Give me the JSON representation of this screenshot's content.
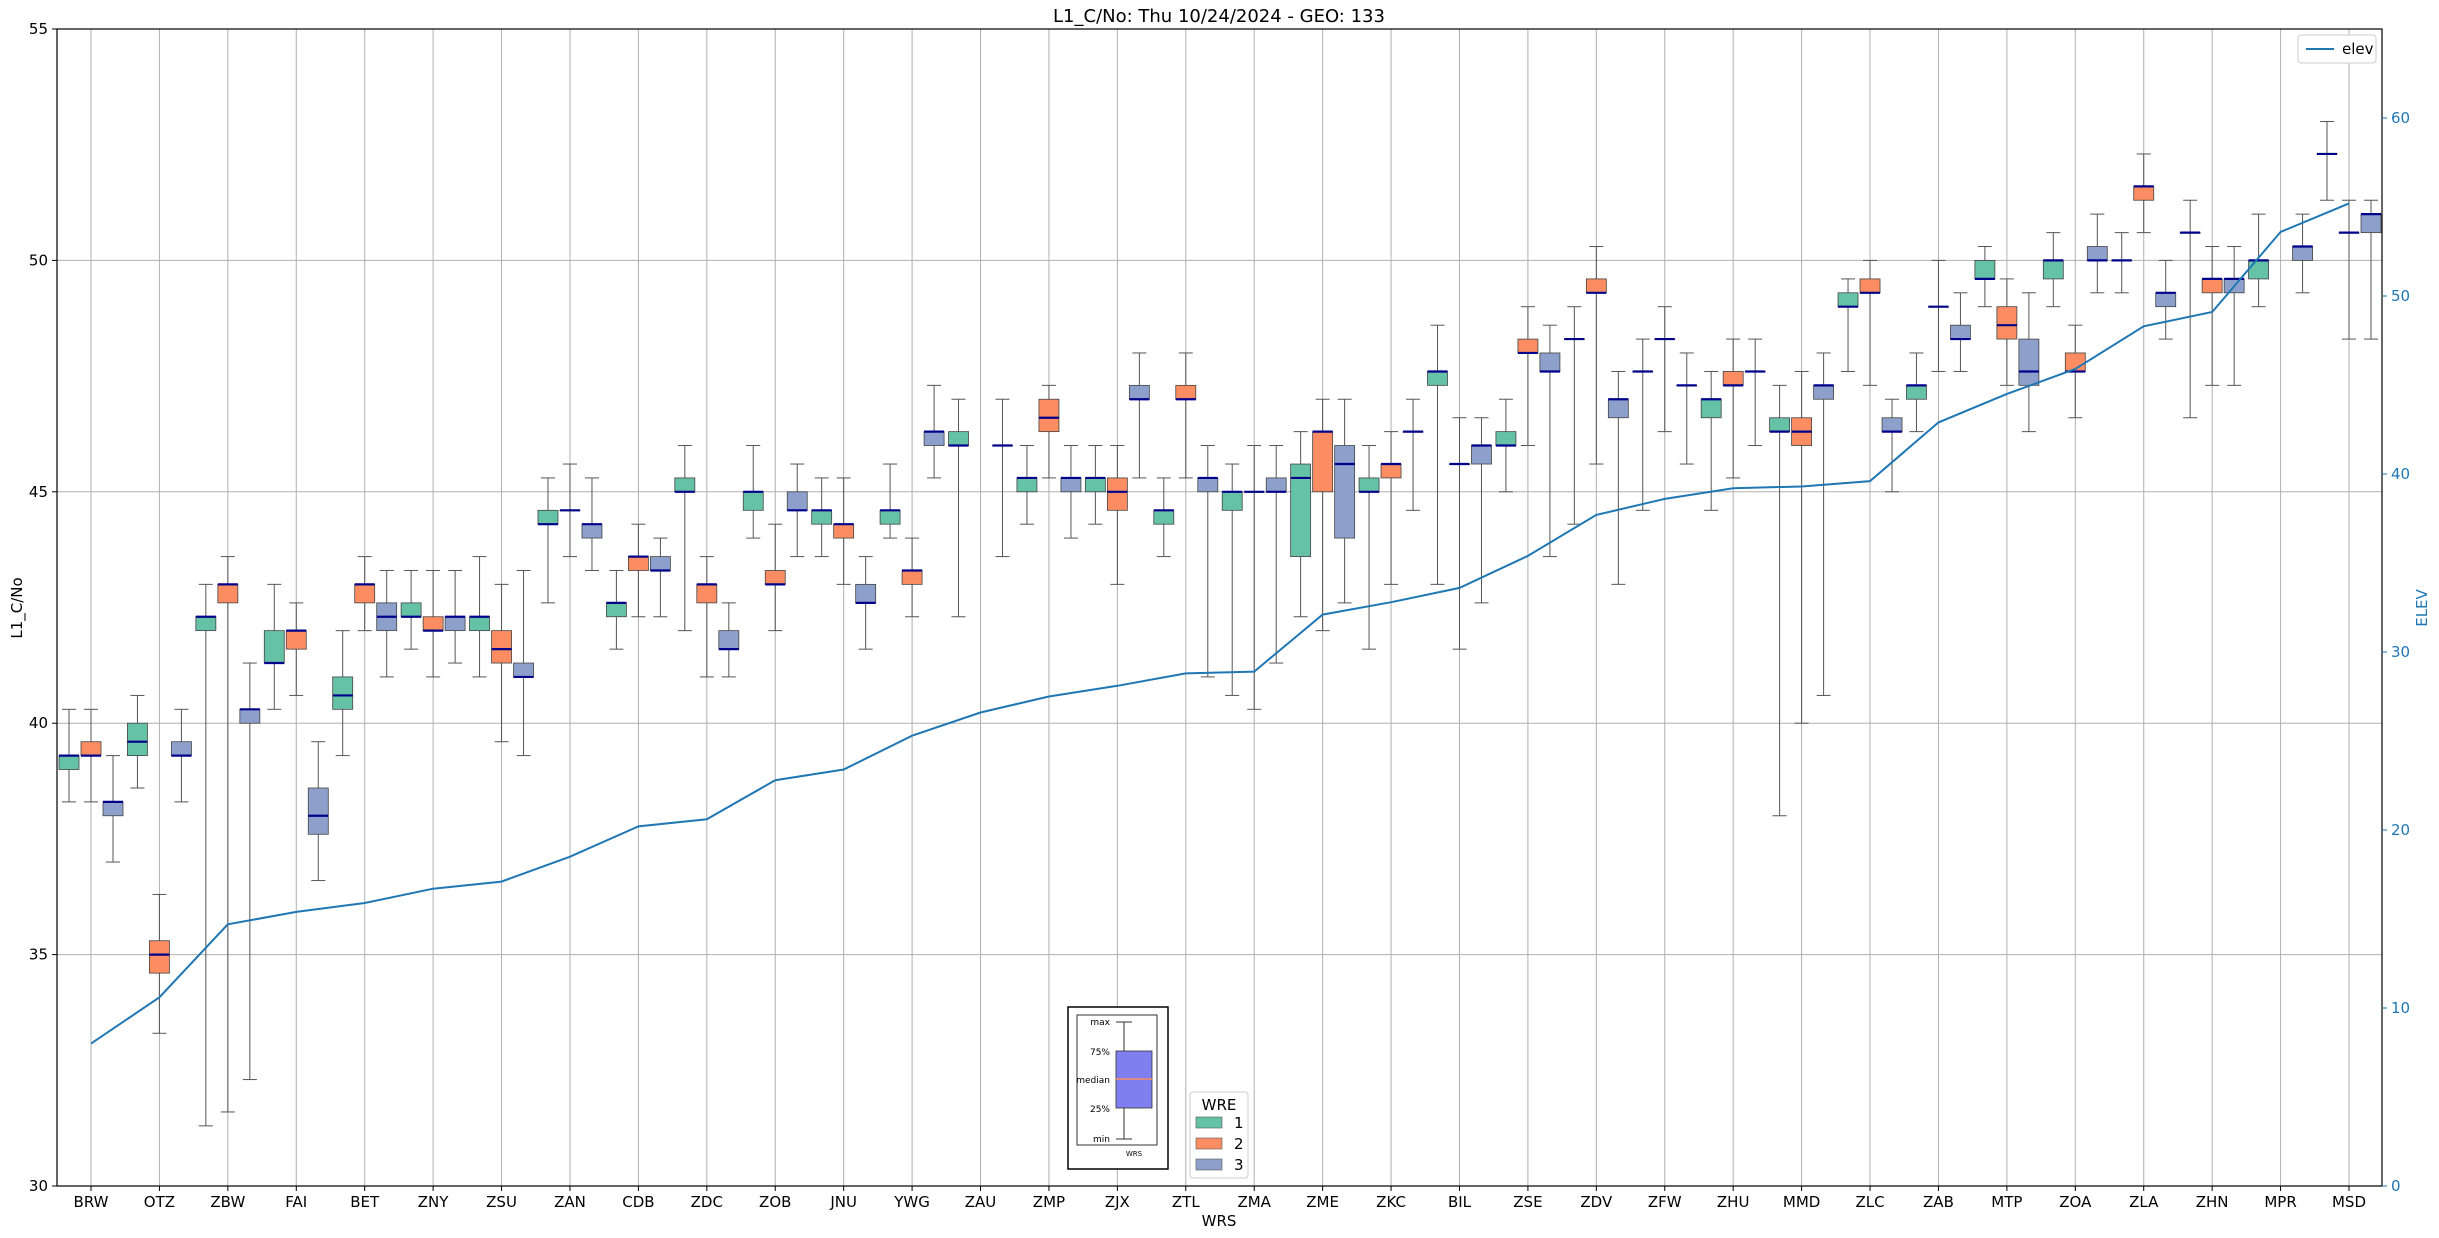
{
  "chart_data": {
    "type": "box",
    "title": "L1_C/No: Thu 10/24/2024 - GEO: 133",
    "xlabel": "WRS",
    "ylabel": "L1_C/No",
    "ylabel_right": "ELEV",
    "ylim": [
      30,
      55
    ],
    "ylim_right": [
      0,
      65
    ],
    "yticks": [
      "30",
      "35",
      "40",
      "45",
      "50",
      "55"
    ],
    "yticks_right": [
      "0",
      "10",
      "20",
      "30",
      "40",
      "50",
      "60"
    ],
    "grid": true,
    "legend_line": {
      "label": "elev",
      "placement": "top-right"
    },
    "legend_wre": {
      "title": "WRE",
      "entries": [
        "1",
        "2",
        "3"
      ],
      "placement": "bottom-center"
    },
    "box_key": {
      "labels": [
        "max",
        "75%",
        "median",
        "25%",
        "min"
      ],
      "xlabel": "WRS"
    },
    "colors": {
      "wre1": "#66c2a5",
      "wre2": "#fc8d62",
      "wre3": "#8da0cb",
      "median": "#00008b",
      "elev": "#1f77b4",
      "whisker": "#555555",
      "right_axis": "#1f77b4"
    },
    "categories": [
      "BRW",
      "OTZ",
      "ZBW",
      "FAI",
      "BET",
      "ZNY",
      "ZSU",
      "ZAN",
      "CDB",
      "ZDC",
      "ZOB",
      "JNU",
      "YWG",
      "ZAU",
      "ZMP",
      "ZJX",
      "ZTL",
      "ZMA",
      "ZME",
      "ZKC",
      "BIL",
      "ZSE",
      "ZDV",
      "ZFW",
      "ZHU",
      "MMD",
      "ZLC",
      "ZAB",
      "MTP",
      "ZOA",
      "ZLA",
      "ZHN",
      "MPR",
      "MSD"
    ],
    "elev": [
      8,
      10.6,
      14.7,
      15.4,
      15.9,
      16.7,
      17.1,
      18.5,
      20.2,
      20.6,
      22.8,
      23.4,
      25.3,
      26.6,
      27.5,
      28.1,
      28.8,
      28.9,
      32.1,
      32.8,
      33.6,
      35.4,
      37.7,
      38.6,
      39.2,
      39.3,
      39.6,
      42.9,
      44.5,
      45.9,
      48.3,
      49.1,
      53.6,
      55.2
    ],
    "boxes": [
      {
        "wrs": "BRW",
        "wre": 1,
        "min": 38.3,
        "q1": 39.0,
        "med": 39.3,
        "q3": 39.3,
        "max": 40.3
      },
      {
        "wrs": "BRW",
        "wre": 2,
        "min": 38.3,
        "q1": 39.3,
        "med": 39.3,
        "q3": 39.6,
        "max": 40.3
      },
      {
        "wrs": "BRW",
        "wre": 3,
        "min": 37.0,
        "q1": 38.0,
        "med": 38.3,
        "q3": 38.3,
        "max": 39.3
      },
      {
        "wrs": "OTZ",
        "wre": 1,
        "min": 38.6,
        "q1": 39.3,
        "med": 39.6,
        "q3": 40.0,
        "max": 40.6
      },
      {
        "wrs": "OTZ",
        "wre": 2,
        "min": 33.3,
        "q1": 34.6,
        "med": 35.0,
        "q3": 35.3,
        "max": 36.3
      },
      {
        "wrs": "OTZ",
        "wre": 3,
        "min": 38.3,
        "q1": 39.3,
        "med": 39.3,
        "q3": 39.6,
        "max": 40.3
      },
      {
        "wrs": "ZBW",
        "wre": 1,
        "min": 31.3,
        "q1": 42.0,
        "med": 42.3,
        "q3": 42.3,
        "max": 43.0
      },
      {
        "wrs": "ZBW",
        "wre": 2,
        "min": 31.6,
        "q1": 42.6,
        "med": 43.0,
        "q3": 43.0,
        "max": 43.6
      },
      {
        "wrs": "ZBW",
        "wre": 3,
        "min": 32.3,
        "q1": 40.0,
        "med": 40.3,
        "q3": 40.3,
        "max": 41.3
      },
      {
        "wrs": "FAI",
        "wre": 1,
        "min": 40.3,
        "q1": 41.3,
        "med": 41.3,
        "q3": 42.0,
        "max": 43.0
      },
      {
        "wrs": "FAI",
        "wre": 2,
        "min": 40.6,
        "q1": 41.6,
        "med": 42.0,
        "q3": 42.0,
        "max": 42.6
      },
      {
        "wrs": "FAI",
        "wre": 3,
        "min": 36.6,
        "q1": 37.6,
        "med": 38.0,
        "q3": 38.6,
        "max": 39.6
      },
      {
        "wrs": "BET",
        "wre": 1,
        "min": 39.3,
        "q1": 40.3,
        "med": 40.6,
        "q3": 41.0,
        "max": 42.0
      },
      {
        "wrs": "BET",
        "wre": 2,
        "min": 42.0,
        "q1": 42.6,
        "med": 43.0,
        "q3": 43.0,
        "max": 43.6
      },
      {
        "wrs": "BET",
        "wre": 3,
        "min": 41.0,
        "q1": 42.0,
        "med": 42.3,
        "q3": 42.6,
        "max": 43.3
      },
      {
        "wrs": "ZNY",
        "wre": 1,
        "min": 41.6,
        "q1": 42.3,
        "med": 42.3,
        "q3": 42.6,
        "max": 43.3
      },
      {
        "wrs": "ZNY",
        "wre": 2,
        "min": 41.0,
        "q1": 42.0,
        "med": 42.0,
        "q3": 42.3,
        "max": 43.3
      },
      {
        "wrs": "ZNY",
        "wre": 3,
        "min": 41.3,
        "q1": 42.0,
        "med": 42.3,
        "q3": 42.3,
        "max": 43.3
      },
      {
        "wrs": "ZSU",
        "wre": 1,
        "min": 41.0,
        "q1": 42.0,
        "med": 42.3,
        "q3": 42.3,
        "max": 43.6
      },
      {
        "wrs": "ZSU",
        "wre": 2,
        "min": 39.6,
        "q1": 41.3,
        "med": 41.6,
        "q3": 42.0,
        "max": 43.0
      },
      {
        "wrs": "ZSU",
        "wre": 3,
        "min": 39.3,
        "q1": 41.0,
        "med": 41.0,
        "q3": 41.3,
        "max": 43.3
      },
      {
        "wrs": "ZAN",
        "wre": 1,
        "min": 42.6,
        "q1": 44.3,
        "med": 44.3,
        "q3": 44.6,
        "max": 45.3
      },
      {
        "wrs": "ZAN",
        "wre": 2,
        "min": 43.6,
        "q1": 44.6,
        "med": 44.6,
        "q3": 44.6,
        "max": 45.6
      },
      {
        "wrs": "ZAN",
        "wre": 3,
        "min": 43.3,
        "q1": 44.0,
        "med": 44.3,
        "q3": 44.3,
        "max": 45.3
      },
      {
        "wrs": "CDB",
        "wre": 1,
        "min": 41.6,
        "q1": 42.3,
        "med": 42.6,
        "q3": 42.6,
        "max": 43.3
      },
      {
        "wrs": "CDB",
        "wre": 2,
        "min": 42.3,
        "q1": 43.3,
        "med": 43.6,
        "q3": 43.6,
        "max": 44.3
      },
      {
        "wrs": "CDB",
        "wre": 3,
        "min": 42.3,
        "q1": 43.3,
        "med": 43.3,
        "q3": 43.6,
        "max": 44.0
      },
      {
        "wrs": "ZDC",
        "wre": 1,
        "min": 42.0,
        "q1": 45.0,
        "med": 45.0,
        "q3": 45.3,
        "max": 46.0
      },
      {
        "wrs": "ZDC",
        "wre": 2,
        "min": 41.0,
        "q1": 42.6,
        "med": 43.0,
        "q3": 43.0,
        "max": 43.6
      },
      {
        "wrs": "ZDC",
        "wre": 3,
        "min": 41.0,
        "q1": 41.6,
        "med": 41.6,
        "q3": 42.0,
        "max": 42.6
      },
      {
        "wrs": "ZOB",
        "wre": 1,
        "min": 44.0,
        "q1": 44.6,
        "med": 45.0,
        "q3": 45.0,
        "max": 46.0
      },
      {
        "wrs": "ZOB",
        "wre": 2,
        "min": 42.0,
        "q1": 43.0,
        "med": 43.0,
        "q3": 43.3,
        "max": 44.3
      },
      {
        "wrs": "ZOB",
        "wre": 3,
        "min": 43.6,
        "q1": 44.6,
        "med": 44.6,
        "q3": 45.0,
        "max": 45.6
      },
      {
        "wrs": "JNU",
        "wre": 1,
        "min": 43.6,
        "q1": 44.3,
        "med": 44.6,
        "q3": 44.6,
        "max": 45.3
      },
      {
        "wrs": "JNU",
        "wre": 2,
        "min": 43.0,
        "q1": 44.0,
        "med": 44.3,
        "q3": 44.3,
        "max": 45.3
      },
      {
        "wrs": "JNU",
        "wre": 3,
        "min": 41.6,
        "q1": 42.6,
        "med": 42.6,
        "q3": 43.0,
        "max": 43.6
      },
      {
        "wrs": "YWG",
        "wre": 1,
        "min": 44.0,
        "q1": 44.3,
        "med": 44.6,
        "q3": 44.6,
        "max": 45.6
      },
      {
        "wrs": "YWG",
        "wre": 2,
        "min": 42.3,
        "q1": 43.0,
        "med": 43.3,
        "q3": 43.3,
        "max": 44.0
      },
      {
        "wrs": "YWG",
        "wre": 3,
        "min": 45.3,
        "q1": 46.0,
        "med": 46.3,
        "q3": 46.3,
        "max": 47.3
      },
      {
        "wrs": "ZAU",
        "wre": 1,
        "min": 42.3,
        "q1": 46.0,
        "med": 46.0,
        "q3": 46.3,
        "max": 47.0
      },
      {
        "wrs": "ZAU",
        "wre": 3,
        "min": 43.6,
        "q1": 46.0,
        "med": 46.0,
        "q3": 46.0,
        "max": 47.0
      },
      {
        "wrs": "ZMP",
        "wre": 1,
        "min": 44.3,
        "q1": 45.0,
        "med": 45.3,
        "q3": 45.3,
        "max": 46.0
      },
      {
        "wrs": "ZMP",
        "wre": 2,
        "min": 45.3,
        "q1": 46.3,
        "med": 46.6,
        "q3": 47.0,
        "max": 47.3
      },
      {
        "wrs": "ZMP",
        "wre": 3,
        "min": 44.0,
        "q1": 45.0,
        "med": 45.3,
        "q3": 45.3,
        "max": 46.0
      },
      {
        "wrs": "ZJX",
        "wre": 1,
        "min": 44.3,
        "q1": 45.0,
        "med": 45.3,
        "q3": 45.3,
        "max": 46.0
      },
      {
        "wrs": "ZJX",
        "wre": 2,
        "min": 43.0,
        "q1": 44.6,
        "med": 45.0,
        "q3": 45.3,
        "max": 46.0
      },
      {
        "wrs": "ZJX",
        "wre": 3,
        "min": 45.3,
        "q1": 47.0,
        "med": 47.0,
        "q3": 47.3,
        "max": 48.0
      },
      {
        "wrs": "ZTL",
        "wre": 1,
        "min": 43.6,
        "q1": 44.3,
        "med": 44.6,
        "q3": 44.6,
        "max": 45.3
      },
      {
        "wrs": "ZTL",
        "wre": 2,
        "min": 45.3,
        "q1": 47.0,
        "med": 47.0,
        "q3": 47.3,
        "max": 48.0
      },
      {
        "wrs": "ZTL",
        "wre": 3,
        "min": 41.0,
        "q1": 45.0,
        "med": 45.3,
        "q3": 45.3,
        "max": 46.0
      },
      {
        "wrs": "ZMA",
        "wre": 1,
        "min": 40.6,
        "q1": 44.6,
        "med": 45.0,
        "q3": 45.0,
        "max": 45.6
      },
      {
        "wrs": "ZMA",
        "wre": 2,
        "min": 40.3,
        "q1": 45.0,
        "med": 45.0,
        "q3": 45.0,
        "max": 46.0
      },
      {
        "wrs": "ZMA",
        "wre": 3,
        "min": 41.3,
        "q1": 45.0,
        "med": 45.0,
        "q3": 45.3,
        "max": 46.0
      },
      {
        "wrs": "ZME",
        "wre": 1,
        "min": 42.3,
        "q1": 43.6,
        "med": 45.3,
        "q3": 45.6,
        "max": 46.3
      },
      {
        "wrs": "ZME",
        "wre": 2,
        "min": 42.0,
        "q1": 45.0,
        "med": 46.3,
        "q3": 46.3,
        "max": 47.0
      },
      {
        "wrs": "ZME",
        "wre": 3,
        "min": 42.6,
        "q1": 44.0,
        "med": 45.6,
        "q3": 46.0,
        "max": 47.0
      },
      {
        "wrs": "ZKC",
        "wre": 1,
        "min": 41.6,
        "q1": 45.0,
        "med": 45.0,
        "q3": 45.3,
        "max": 46.0
      },
      {
        "wrs": "ZKC",
        "wre": 2,
        "min": 43.0,
        "q1": 45.3,
        "med": 45.6,
        "q3": 45.6,
        "max": 46.3
      },
      {
        "wrs": "ZKC",
        "wre": 3,
        "min": 44.6,
        "q1": 46.3,
        "med": 46.3,
        "q3": 46.3,
        "max": 47.0
      },
      {
        "wrs": "BIL",
        "wre": 1,
        "min": 43.0,
        "q1": 47.3,
        "med": 47.6,
        "q3": 47.6,
        "max": 48.6
      },
      {
        "wrs": "BIL",
        "wre": 2,
        "min": 41.6,
        "q1": 45.6,
        "med": 45.6,
        "q3": 45.6,
        "max": 46.6
      },
      {
        "wrs": "BIL",
        "wre": 3,
        "min": 42.6,
        "q1": 45.6,
        "med": 46.0,
        "q3": 46.0,
        "max": 46.6
      },
      {
        "wrs": "ZSE",
        "wre": 1,
        "min": 45.0,
        "q1": 46.0,
        "med": 46.0,
        "q3": 46.3,
        "max": 47.0
      },
      {
        "wrs": "ZSE",
        "wre": 2,
        "min": 46.0,
        "q1": 48.0,
        "med": 48.0,
        "q3": 48.3,
        "max": 49.0
      },
      {
        "wrs": "ZSE",
        "wre": 3,
        "min": 43.6,
        "q1": 47.6,
        "med": 47.6,
        "q3": 48.0,
        "max": 48.6
      },
      {
        "wrs": "ZDV",
        "wre": 1,
        "min": 44.3,
        "q1": 48.3,
        "med": 48.3,
        "q3": 48.3,
        "max": 49.0
      },
      {
        "wrs": "ZDV",
        "wre": 2,
        "min": 45.6,
        "q1": 49.3,
        "med": 49.3,
        "q3": 49.6,
        "max": 50.3
      },
      {
        "wrs": "ZDV",
        "wre": 3,
        "min": 43.0,
        "q1": 46.6,
        "med": 47.0,
        "q3": 47.0,
        "max": 47.6
      },
      {
        "wrs": "ZFW",
        "wre": 1,
        "min": 44.6,
        "q1": 47.6,
        "med": 47.6,
        "q3": 47.6,
        "max": 48.3
      },
      {
        "wrs": "ZFW",
        "wre": 2,
        "min": 46.3,
        "q1": 48.3,
        "med": 48.3,
        "q3": 48.3,
        "max": 49.0
      },
      {
        "wrs": "ZFW",
        "wre": 3,
        "min": 45.6,
        "q1": 47.3,
        "med": 47.3,
        "q3": 47.3,
        "max": 48.0
      },
      {
        "wrs": "ZHU",
        "wre": 1,
        "min": 44.6,
        "q1": 46.6,
        "med": 47.0,
        "q3": 47.0,
        "max": 47.6
      },
      {
        "wrs": "ZHU",
        "wre": 2,
        "min": 45.3,
        "q1": 47.3,
        "med": 47.3,
        "q3": 47.6,
        "max": 48.3
      },
      {
        "wrs": "ZHU",
        "wre": 3,
        "min": 46.0,
        "q1": 47.6,
        "med": 47.6,
        "q3": 47.6,
        "max": 48.3
      },
      {
        "wrs": "MMD",
        "wre": 1,
        "min": 38.0,
        "q1": 46.3,
        "med": 46.3,
        "q3": 46.6,
        "max": 47.3
      },
      {
        "wrs": "MMD",
        "wre": 2,
        "min": 40.0,
        "q1": 46.0,
        "med": 46.3,
        "q3": 46.6,
        "max": 47.6
      },
      {
        "wrs": "MMD",
        "wre": 3,
        "min": 40.6,
        "q1": 47.0,
        "med": 47.3,
        "q3": 47.3,
        "max": 48.0
      },
      {
        "wrs": "ZLC",
        "wre": 1,
        "min": 47.6,
        "q1": 49.0,
        "med": 49.0,
        "q3": 49.3,
        "max": 49.6
      },
      {
        "wrs": "ZLC",
        "wre": 2,
        "min": 47.3,
        "q1": 49.3,
        "med": 49.3,
        "q3": 49.6,
        "max": 50.0
      },
      {
        "wrs": "ZLC",
        "wre": 3,
        "min": 45.0,
        "q1": 46.3,
        "med": 46.3,
        "q3": 46.6,
        "max": 47.0
      },
      {
        "wrs": "ZAB",
        "wre": 1,
        "min": 46.3,
        "q1": 47.0,
        "med": 47.3,
        "q3": 47.3,
        "max": 48.0
      },
      {
        "wrs": "ZAB",
        "wre": 2,
        "min": 47.6,
        "q1": 49.0,
        "med": 49.0,
        "q3": 49.0,
        "max": 50.0
      },
      {
        "wrs": "ZAB",
        "wre": 3,
        "min": 47.6,
        "q1": 48.3,
        "med": 48.3,
        "q3": 48.6,
        "max": 49.3
      },
      {
        "wrs": "MTP",
        "wre": 1,
        "min": 49.0,
        "q1": 49.6,
        "med": 49.6,
        "q3": 50.0,
        "max": 50.3
      },
      {
        "wrs": "MTP",
        "wre": 2,
        "min": 47.3,
        "q1": 48.3,
        "med": 48.6,
        "q3": 49.0,
        "max": 49.6
      },
      {
        "wrs": "MTP",
        "wre": 3,
        "min": 46.3,
        "q1": 47.3,
        "med": 47.6,
        "q3": 48.3,
        "max": 49.3
      },
      {
        "wrs": "ZOA",
        "wre": 1,
        "min": 49.0,
        "q1": 49.6,
        "med": 50.0,
        "q3": 50.0,
        "max": 50.6
      },
      {
        "wrs": "ZOA",
        "wre": 2,
        "min": 46.6,
        "q1": 47.6,
        "med": 47.6,
        "q3": 48.0,
        "max": 48.6
      },
      {
        "wrs": "ZOA",
        "wre": 3,
        "min": 49.3,
        "q1": 50.0,
        "med": 50.0,
        "q3": 50.3,
        "max": 51.0
      },
      {
        "wrs": "ZLA",
        "wre": 1,
        "min": 49.3,
        "q1": 50.0,
        "med": 50.0,
        "q3": 50.0,
        "max": 50.6
      },
      {
        "wrs": "ZLA",
        "wre": 2,
        "min": 50.6,
        "q1": 51.3,
        "med": 51.6,
        "q3": 51.6,
        "max": 52.3
      },
      {
        "wrs": "ZLA",
        "wre": 3,
        "min": 48.3,
        "q1": 49.0,
        "med": 49.3,
        "q3": 49.3,
        "max": 50.0
      },
      {
        "wrs": "ZHN",
        "wre": 1,
        "min": 46.6,
        "q1": 50.6,
        "med": 50.6,
        "q3": 50.6,
        "max": 51.3
      },
      {
        "wrs": "ZHN",
        "wre": 2,
        "min": 47.3,
        "q1": 49.3,
        "med": 49.6,
        "q3": 49.6,
        "max": 50.3
      },
      {
        "wrs": "ZHN",
        "wre": 3,
        "min": 47.3,
        "q1": 49.3,
        "med": 49.6,
        "q3": 49.6,
        "max": 50.3
      },
      {
        "wrs": "MPR",
        "wre": 1,
        "min": 49.0,
        "q1": 49.6,
        "med": 50.0,
        "q3": 50.0,
        "max": 51.0
      },
      {
        "wrs": "MPR",
        "wre": 3,
        "min": 49.3,
        "q1": 50.0,
        "med": 50.3,
        "q3": 50.3,
        "max": 51.0
      },
      {
        "wrs": "MSD",
        "wre": 1,
        "min": 51.3,
        "q1": 52.3,
        "med": 52.3,
        "q3": 52.3,
        "max": 53.0
      },
      {
        "wrs": "MSD",
        "wre": 2,
        "min": 48.3,
        "q1": 50.6,
        "med": 50.6,
        "q3": 50.6,
        "max": 51.3
      },
      {
        "wrs": "MSD",
        "wre": 3,
        "min": 48.3,
        "q1": 50.6,
        "med": 51.0,
        "q3": 51.0,
        "max": 51.3
      }
    ]
  }
}
